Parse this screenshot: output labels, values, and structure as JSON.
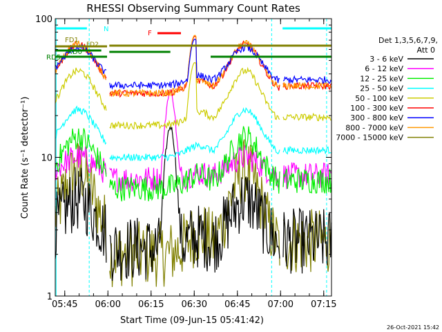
{
  "chart_data": {
    "type": "line",
    "title": "RHESSI Observing Summary Count Rates",
    "xlabel": "Start Time (09-Jun-15 05:41:42)",
    "ylabel": "Count Rate (s⁻¹ detector⁻¹)",
    "yscale": "log",
    "ylim": [
      1,
      100
    ],
    "xlim_minutes_from_0541_42": [
      0,
      96
    ],
    "y_tick_labels": [
      "1",
      "10",
      "100"
    ],
    "x_ticks": [
      {
        "label": "05:45",
        "minute": 3.3
      },
      {
        "label": "06:00",
        "minute": 18.3
      },
      {
        "label": "06:15",
        "minute": 33.3
      },
      {
        "label": "06:30",
        "minute": 48.3
      },
      {
        "label": "06:45",
        "minute": 63.3
      },
      {
        "label": "07:00",
        "minute": 78.3
      },
      {
        "label": "07:15",
        "minute": 93.3
      }
    ],
    "legend_header": [
      "Det 1,3,5,6,7,9,",
      "Att 0"
    ],
    "series": [
      {
        "name": "3 - 6 keV",
        "color": "#000000",
        "base": 2.2,
        "peak": 5,
        "flare": 15
      },
      {
        "name": "6 - 12 keV",
        "color": "#ff00ff",
        "base": 7,
        "peak": 10,
        "flare": 25
      },
      {
        "name": "12 - 25 keV",
        "color": "#00ee00",
        "base": 6,
        "peak": 14,
        "flare": 0
      },
      {
        "name": "25 - 50 keV",
        "color": "#00ffff",
        "base": 10,
        "peak": 22,
        "flare": 0
      },
      {
        "name": "50 - 100 keV",
        "color": "#cccc00",
        "base": 17,
        "peak": 42,
        "flare": 0
      },
      {
        "name": "100 - 300 keV",
        "color": "#ff0000",
        "base": 29,
        "peak": 65,
        "flare": 0
      },
      {
        "name": "300 - 800 keV",
        "color": "#0000ff",
        "base": 33,
        "peak": 62,
        "flare": 0
      },
      {
        "name": "800 - 7000 keV",
        "color": "#ff9900",
        "base": 29,
        "peak": 66,
        "flare": 0
      },
      {
        "name": "7000 - 15000 keV",
        "color": "#808000",
        "base": 2.0,
        "peak": 8,
        "flare": 0
      }
    ],
    "state_bars": [
      {
        "label": "N",
        "color": "#00ffff"
      },
      {
        "label": "F",
        "color": "#ff0000"
      },
      {
        "label": "FD1",
        "color": "#808000"
      },
      {
        "label": "FD2",
        "color": "#808000"
      },
      {
        "label": "RD0",
        "color": "#008000"
      },
      {
        "label": "RD5",
        "color": "#008000"
      }
    ],
    "timestamp": "26-Oct-2021 15:42"
  }
}
